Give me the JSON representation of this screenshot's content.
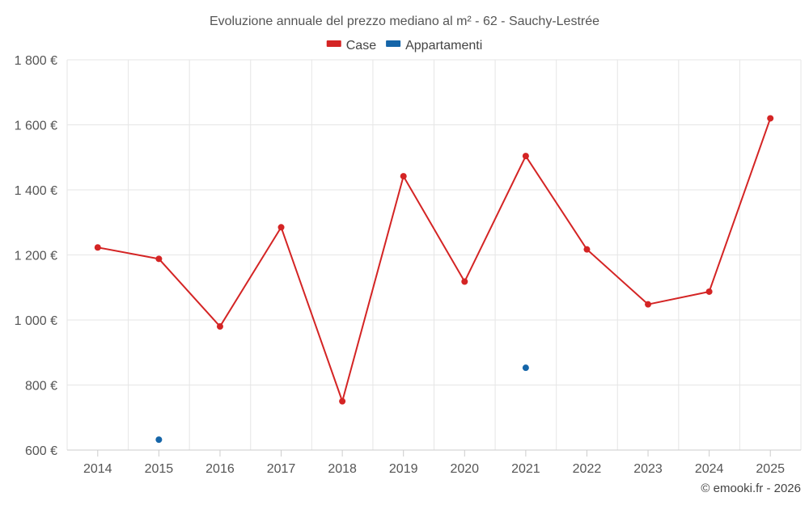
{
  "chart_data": {
    "type": "line",
    "title": "Evoluzione annuale del prezzo mediano al m² - 62 - Sauchy-Lestrée",
    "categories": [
      "2014",
      "2015",
      "2016",
      "2017",
      "2018",
      "2019",
      "2020",
      "2021",
      "2022",
      "2023",
      "2024",
      "2025"
    ],
    "series": [
      {
        "name": "Case",
        "color": "#d42424",
        "values": [
          1223,
          1188,
          980,
          1285,
          750,
          1442,
          1118,
          1504,
          1217,
          1048,
          1087,
          1620
        ]
      },
      {
        "name": "Appartamenti",
        "color": "#1565a8",
        "values": [
          null,
          632,
          null,
          null,
          null,
          null,
          null,
          853,
          null,
          null,
          null,
          null
        ]
      }
    ],
    "ylim": [
      600,
      1800
    ],
    "yticks": [
      600,
      800,
      1000,
      1200,
      1400,
      1600,
      1800
    ],
    "ytick_labels": [
      "600 €",
      "800 €",
      "1 000 €",
      "1 200 €",
      "1 400 €",
      "1 600 €",
      "1 800 €"
    ],
    "grid": true,
    "legend_position": "top-center",
    "credit": "© emooki.fr - 2026"
  }
}
